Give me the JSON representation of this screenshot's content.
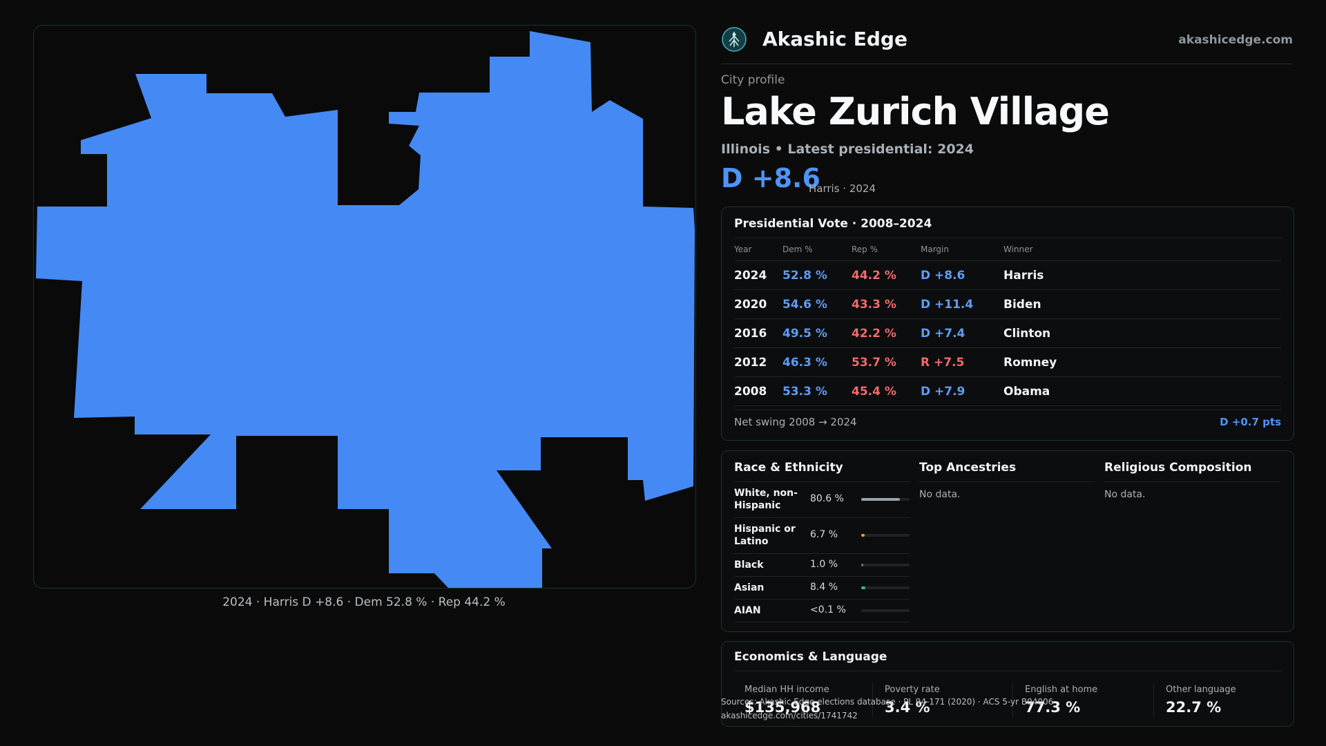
{
  "map": {
    "fill_color": "#4589f5",
    "border_color": "#173238",
    "caption": "2024 · Harris D +8.6 · Dem 52.8 % · Rep 44.2 %"
  },
  "brand": {
    "logo_icon": "tree-of-life-icon",
    "name": "Akashic Edge",
    "url": "akashicedge.com"
  },
  "profile": {
    "label": "City profile",
    "city": "Lake Zurich Village",
    "subtitle": "Illinois • Latest presidential: 2024",
    "margin": "D +8.6",
    "margin_note": "Harris · 2024"
  },
  "colors": {
    "dem": "#5f9cf5",
    "rep": "#f06b6b",
    "accent": "#4f94f5"
  },
  "presidential": {
    "title": "Presidential Vote · 2008–2024",
    "headers": [
      "Year",
      "Dem %",
      "Rep %",
      "Margin",
      "Winner"
    ],
    "rows": [
      {
        "year": "2024",
        "dem": "52.8 %",
        "rep": "44.2 %",
        "margin": "D +8.6",
        "winner": "Harris"
      },
      {
        "year": "2020",
        "dem": "54.6 %",
        "rep": "43.3 %",
        "margin": "D +11.4",
        "winner": "Biden"
      },
      {
        "year": "2016",
        "dem": "49.5 %",
        "rep": "42.2 %",
        "margin": "D +7.4",
        "winner": "Clinton"
      },
      {
        "year": "2012",
        "dem": "46.3 %",
        "rep": "53.7 %",
        "margin": "R +7.5",
        "winner": "Romney"
      },
      {
        "year": "2008",
        "dem": "53.3 %",
        "rep": "45.4 %",
        "margin": "D +7.9",
        "winner": "Obama"
      }
    ],
    "swing_label": "Net swing 2008 → 2024",
    "swing_value": "D +0.7 pts"
  },
  "race": {
    "title": "Race & Ethnicity",
    "rows": [
      {
        "label": "White, non-Hispanic",
        "value": "80.6 %",
        "share": 0.806,
        "color": "#9aa3a9"
      },
      {
        "label": "Hispanic or Latino",
        "value": "6.7 %",
        "share": 0.067,
        "color": "#e0a030"
      },
      {
        "label": "Black",
        "value": "1.0 %",
        "share": 0.01,
        "color": "#6b7378"
      },
      {
        "label": "Asian",
        "value": "8.4 %",
        "share": 0.084,
        "color": "#2ec27e"
      },
      {
        "label": "AIAN",
        "value": "<0.1 %",
        "share": 0.001,
        "color": "#6b7378"
      }
    ]
  },
  "ancestries": {
    "title": "Top Ancestries",
    "empty": "No data."
  },
  "religion": {
    "title": "Religious Composition",
    "empty": "No data."
  },
  "economics": {
    "title": "Economics & Language",
    "items": [
      {
        "label": "Median HH income",
        "value": "$135,968"
      },
      {
        "label": "Poverty rate",
        "value": "3.4 %"
      },
      {
        "label": "English at home",
        "value": "77.3 %"
      },
      {
        "label": "Other language",
        "value": "22.7 %"
      }
    ]
  },
  "sources": {
    "line1": "Sources: Akashic Edge elections database · PL 94-171 (2020) · ACS 5-yr B04006",
    "line2": "akashicedge.com/cities/1741742"
  }
}
